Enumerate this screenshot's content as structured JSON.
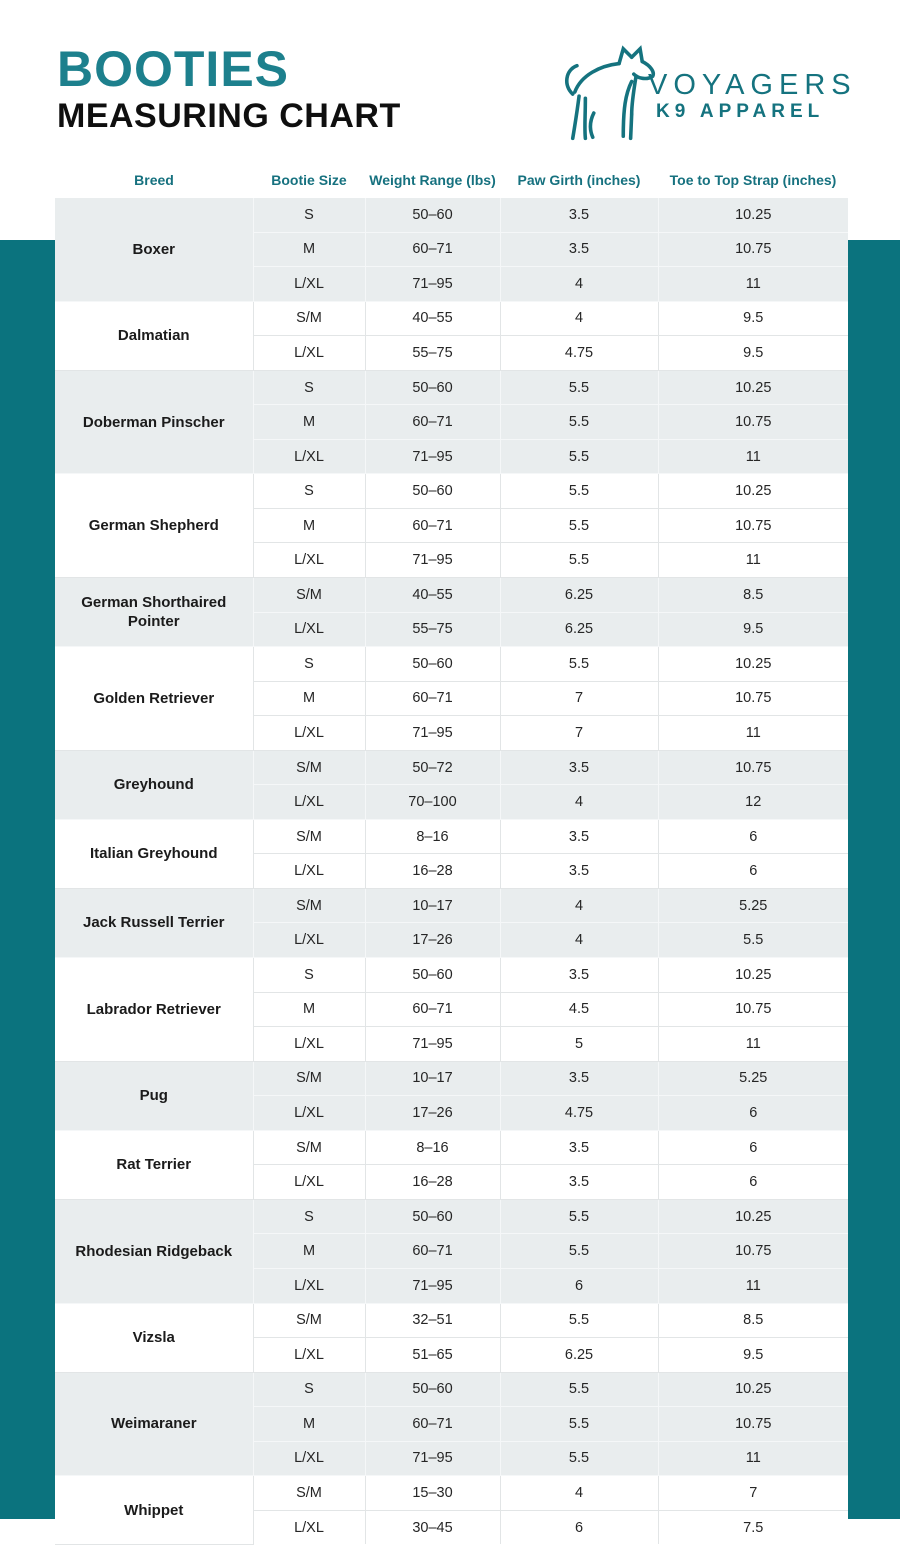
{
  "page": {
    "title_line1": "BOOTIES",
    "title_line2": "MEASURING CHART",
    "colors": {
      "teal_band": "#0b737e",
      "title_teal": "#1d808d",
      "logo_teal": "#15737f",
      "header_text_teal": "#16717f",
      "group_gray": "#e9edee",
      "group_white": "#ffffff"
    }
  },
  "brand": {
    "name_line1": "VOYAGERS",
    "name_line2": "K9 APPAREL",
    "logo_icon": "dog-line-art-icon"
  },
  "table": {
    "columns": [
      "Breed",
      "Bootie Size",
      "Weight Range (lbs)",
      "Paw Girth (inches)",
      "Toe to Top Strap (inches)"
    ],
    "groups": [
      {
        "breed": "Boxer",
        "shade": "gray",
        "rows": [
          [
            "S",
            "50–60",
            "3.5",
            "10.25"
          ],
          [
            "M",
            "60–71",
            "3.5",
            "10.75"
          ],
          [
            "L/XL",
            "71–95",
            "4",
            "11"
          ]
        ]
      },
      {
        "breed": "Dalmatian",
        "shade": "white",
        "rows": [
          [
            "S/M",
            "40–55",
            "4",
            "9.5"
          ],
          [
            "L/XL",
            "55–75",
            "4.75",
            "9.5"
          ]
        ]
      },
      {
        "breed": "Doberman Pinscher",
        "shade": "gray",
        "rows": [
          [
            "S",
            "50–60",
            "5.5",
            "10.25"
          ],
          [
            "M",
            "60–71",
            "5.5",
            "10.75"
          ],
          [
            "L/XL",
            "71–95",
            "5.5",
            "11"
          ]
        ]
      },
      {
        "breed": "German Shepherd",
        "shade": "white",
        "rows": [
          [
            "S",
            "50–60",
            "5.5",
            "10.25"
          ],
          [
            "M",
            "60–71",
            "5.5",
            "10.75"
          ],
          [
            "L/XL",
            "71–95",
            "5.5",
            "11"
          ]
        ]
      },
      {
        "breed": "German Shorthaired Pointer",
        "shade": "gray",
        "rows": [
          [
            "S/M",
            "40–55",
            "6.25",
            "8.5"
          ],
          [
            "L/XL",
            "55–75",
            "6.25",
            "9.5"
          ]
        ]
      },
      {
        "breed": "Golden Retriever",
        "shade": "white",
        "rows": [
          [
            "S",
            "50–60",
            "5.5",
            "10.25"
          ],
          [
            "M",
            "60–71",
            "7",
            "10.75"
          ],
          [
            "L/XL",
            "71–95",
            "7",
            "11"
          ]
        ]
      },
      {
        "breed": "Greyhound",
        "shade": "gray",
        "rows": [
          [
            "S/M",
            "50–72",
            "3.5",
            "10.75"
          ],
          [
            "L/XL",
            "70–100",
            "4",
            "12"
          ]
        ]
      },
      {
        "breed": "Italian Greyhound",
        "shade": "white",
        "rows": [
          [
            "S/M",
            "8–16",
            "3.5",
            "6"
          ],
          [
            "L/XL",
            "16–28",
            "3.5",
            "6"
          ]
        ]
      },
      {
        "breed": "Jack Russell Terrier",
        "shade": "gray",
        "rows": [
          [
            "S/M",
            "10–17",
            "4",
            "5.25"
          ],
          [
            "L/XL",
            "17–26",
            "4",
            "5.5"
          ]
        ]
      },
      {
        "breed": "Labrador Retriever",
        "shade": "white",
        "rows": [
          [
            "S",
            "50–60",
            "3.5",
            "10.25"
          ],
          [
            "M",
            "60–71",
            "4.5",
            "10.75"
          ],
          [
            "L/XL",
            "71–95",
            "5",
            "11"
          ]
        ]
      },
      {
        "breed": "Pug",
        "shade": "gray",
        "rows": [
          [
            "S/M",
            "10–17",
            "3.5",
            "5.25"
          ],
          [
            "L/XL",
            "17–26",
            "4.75",
            "6"
          ]
        ]
      },
      {
        "breed": "Rat Terrier",
        "shade": "white",
        "rows": [
          [
            "S/M",
            "8–16",
            "3.5",
            "6"
          ],
          [
            "L/XL",
            "16–28",
            "3.5",
            "6"
          ]
        ]
      },
      {
        "breed": "Rhodesian Ridgeback",
        "shade": "gray",
        "rows": [
          [
            "S",
            "50–60",
            "5.5",
            "10.25"
          ],
          [
            "M",
            "60–71",
            "5.5",
            "10.75"
          ],
          [
            "L/XL",
            "71–95",
            "6",
            "11"
          ]
        ]
      },
      {
        "breed": "Vizsla",
        "shade": "white",
        "rows": [
          [
            "S/M",
            "32–51",
            "5.5",
            "8.5"
          ],
          [
            "L/XL",
            "51–65",
            "6.25",
            "9.5"
          ]
        ]
      },
      {
        "breed": "Weimaraner",
        "shade": "gray",
        "rows": [
          [
            "S",
            "50–60",
            "5.5",
            "10.25"
          ],
          [
            "M",
            "60–71",
            "5.5",
            "10.75"
          ],
          [
            "L/XL",
            "71–95",
            "5.5",
            "11"
          ]
        ]
      },
      {
        "breed": "Whippet",
        "shade": "white",
        "rows": [
          [
            "S/M",
            "15–30",
            "4",
            "7"
          ],
          [
            "L/XL",
            "30–45",
            "6",
            "7.5"
          ]
        ]
      }
    ]
  }
}
